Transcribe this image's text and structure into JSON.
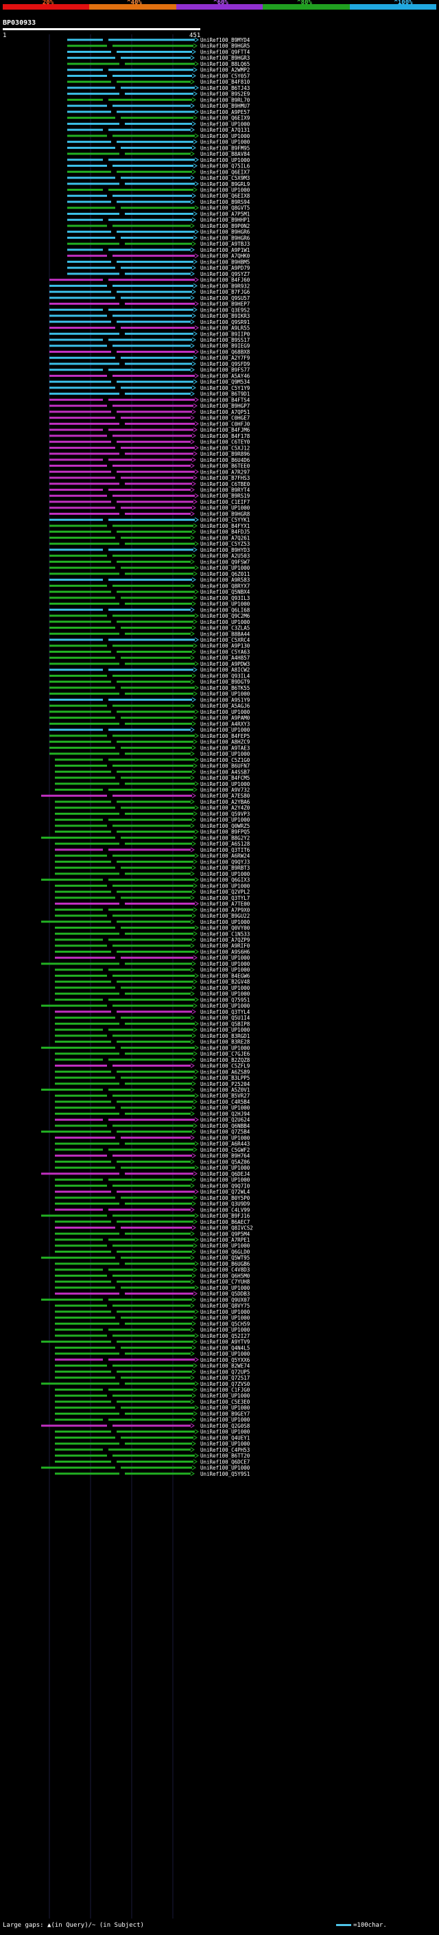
{
  "header": {
    "legend_labels": [
      "20%",
      "^40%",
      "^60%",
      "^80%",
      "^100%"
    ],
    "legend_colors": [
      "#e01010",
      "#e07010",
      "#9030d0",
      "#20a020",
      "#20a8e0"
    ],
    "query_id": "BP030933",
    "ruler_start": "1",
    "ruler_end": "451"
  },
  "hit_colors": {
    "cyan": "#3cc0e8",
    "green": "#22b022",
    "magenta": "#c030c0"
  },
  "footer": {
    "large_gaps": "Large gaps: ▲(in Query)/~ (in Subject)",
    "scale": "=100char."
  },
  "hits": [
    "UniRef100_B9MYD4",
    "UniRef100_B9HGR5",
    "UniRef100_Q9FTT4",
    "UniRef100_B9HGR3",
    "UniRef100_B8LQ65",
    "UniRef100_A2WMP2",
    "UniRef100_C5Y057",
    "UniRef100_B4F810",
    "UniRef100_B6TJ43",
    "UniRef100_B9S2E9",
    "UniRef100_B9RL70",
    "UniRef100_B9HMU7",
    "UniRef100_A9PE57",
    "UniRef100_Q6EIX9",
    "UniRef100_UP1000",
    "UniRef100_A7Q131",
    "UniRef100_UP1000",
    "UniRef100_UP1000",
    "UniRef100_B9FM95",
    "UniRef100_B8AV84",
    "UniRef100_UP1000",
    "UniRef100_Q75IL6",
    "UniRef100_Q6EIX7",
    "UniRef100_C5X9M3",
    "UniRef100_B9GRL9",
    "UniRef100_UP1000",
    "UniRef100_Q6EIX8",
    "UniRef100_B9RS94",
    "UniRef100_Q8GVT5",
    "UniRef100_A7P5M1",
    "UniRef100_B9HHP1",
    "UniRef100_B9P0N2",
    "UniRef100_B9HGR6",
    "UniRef100_B9HGR6",
    "UniRef100_A9TBJ3",
    "UniRef100_A9P1W1",
    "UniRef100_A7QHK0",
    "UniRef100_B9HBM5",
    "UniRef100_A9PD79",
    "UniRef100_Q9SYZ7",
    "UniRef100_B4FJ60",
    "UniRef100_B9R932",
    "UniRef100_B7FJG6",
    "UniRef100_Q9SU57",
    "UniRef100_B9HEP7",
    "UniRef100_Q3E9S2",
    "UniRef100_B9IKR3",
    "UniRef100_Q9SR91",
    "UniRef100_A9LR55",
    "UniRef100_B9IIP0",
    "UniRef100_B9SS17",
    "UniRef100_B9IEG9",
    "UniRef100_Q68BX8",
    "UniRef100_A2Y7F9",
    "UniRef100_Q9SFD9",
    "UniRef100_B9FS77",
    "UniRef100_A5AY46",
    "UniRef100_Q9M534",
    "UniRef100_C5Y1Y9",
    "UniRef100_B6T9D1",
    "UniRef100_B4FTS4",
    "UniRef100_B9HGP7",
    "UniRef100_A7QP51",
    "UniRef100_C0HGE7",
    "UniRef100_C0HFJ0",
    "UniRef100_B4FJM6",
    "UniRef100_B4F178",
    "UniRef100_C6TEY0",
    "UniRef100_C5XJ12",
    "UniRef100_B9R896",
    "UniRef100_B6U4D6",
    "UniRef100_B6TEE0",
    "UniRef100_A7R297",
    "UniRef100_B7FHS3",
    "UniRef100_C6TBE0",
    "UniRef100_B9RYT4",
    "UniRef100_B9RS19",
    "UniRef100_C1EIF7",
    "UniRef100_UP1000",
    "UniRef100_B9HGR8",
    "UniRef100_C5YYK1",
    "UniRef100_B4FYX1",
    "UniRef100_B4FDJ5",
    "UniRef100_A7Q261",
    "UniRef100_C5YZ53",
    "UniRef100_B9HYD3",
    "UniRef100_A2U503",
    "UniRef100_Q9FSW7",
    "UniRef100_UP1000",
    "UniRef100_Q6Z011",
    "UniRef100_A9R583",
    "UniRef100_Q8RYX7",
    "UniRef100_Q5NBX4",
    "UniRef100_Q93IL3",
    "UniRef100_UP1000",
    "UniRef100_Q6LI68",
    "UniRef100_Q9C2M6",
    "UniRef100_UP1000",
    "UniRef100_C3ZLA5",
    "UniRef100_B8BA44",
    "UniRef100_C5XRC4",
    "UniRef100_A9P130",
    "UniRef100_C5YA63",
    "UniRef100_A4H857",
    "UniRef100_A9PDW3",
    "UniRef100_A8ICW2",
    "UniRef100_Q93IL4",
    "UniRef100_B9DGT9",
    "UniRef100_B6TK55",
    "UniRef100_UP1000",
    "UniRef100_A9S1Y9",
    "UniRef100_A5AGJ6",
    "UniRef100_UP1000",
    "UniRef100_A9PAM0",
    "UniRef100_A4RXY3",
    "UniRef100_UP1000",
    "UniRef100_B4FEP5",
    "UniRef100_A8HZC9",
    "UniRef100_A9TAE3",
    "UniRef100_UP1000",
    "UniRef100_C5Z1G0",
    "UniRef100_B6UFN7",
    "UniRef100_A4SSB7",
    "UniRef100_B4FCM5",
    "UniRef100_UP1000",
    "UniRef100_A9V732",
    "UniRef100_A7ES80",
    "UniRef100_A2YBA6",
    "UniRef100_A2Y4Z0",
    "UniRef100_Q59VP3",
    "UniRef100_UP1000",
    "UniRef100_Q0WRZ5",
    "UniRef100_B9FPQ5",
    "UniRef100_B8G2Y2",
    "UniRef100_A6S128",
    "UniRef100_Q3TIT6",
    "UniRef100_A6RW24",
    "UniRef100_Q9QYJ3",
    "UniRef100_B9RBT3",
    "UniRef100_UP1000",
    "UniRef100_Q6GIX3",
    "UniRef100_UP1000",
    "UniRef100_Q2VPL2",
    "UniRef100_Q3TYL7",
    "UniRef100_A7TE00",
    "UniRef100_A7P9X0",
    "UniRef100_B9GU22",
    "UniRef100_UP1000",
    "UniRef100_Q0VY00",
    "UniRef100_C1N533",
    "UniRef100_A7QZP9",
    "UniRef100_A9RIF0",
    "UniRef100_A9S6H6",
    "UniRef100_UP1000",
    "UniRef100_UP1000",
    "UniRef100_UP1000",
    "UniRef100_B4EGW6",
    "UniRef100_B2GV48",
    "UniRef100_UP1000",
    "UniRef100_UP1000",
    "UniRef100_Q75951",
    "UniRef100_UP1000",
    "UniRef100_Q3TYL4",
    "UniRef100_Q5U1I4",
    "UniRef100_Q5BIP8",
    "UniRef100_UP1000",
    "UniRef100_B3RGD1",
    "UniRef100_B3RE28",
    "UniRef100_UP1000",
    "UniRef100_C7GJE6",
    "UniRef100_B2ZQZ8",
    "UniRef100_C5ZFL9",
    "UniRef100_A6ZS89",
    "UniRef100_B3LPP5",
    "UniRef100_P25204",
    "UniRef100_A5Z0V1",
    "UniRef100_B5VR27",
    "UniRef100_C4R5B4",
    "UniRef100_UP1000",
    "UniRef100_Q2HJ94",
    "UniRef100_Q2U624",
    "UniRef100_Q6NBB4",
    "UniRef100_Q7Z5B4",
    "UniRef100_UP1000",
    "UniRef100_A6R443",
    "UniRef100_C5GWF2",
    "UniRef100_B9H764",
    "UniRef100_Q5AZ06",
    "UniRef100_UP1000",
    "UniRef100_Q6DEJ4",
    "UniRef100_UP1000",
    "UniRef100_Q9Q7I0",
    "UniRef100_Q72WL4",
    "UniRef100_B0Y5P0",
    "UniRef100_Q3U9D9",
    "UniRef100_C4LV99",
    "UniRef100_B9FJ16",
    "UniRef100_B6AEC7",
    "UniRef100_Q8IVCS2",
    "UniRef100_Q9P5M4",
    "UniRef100_A7RPE1",
    "UniRef100_UP1000",
    "UniRef100_Q6GLD0",
    "UniRef100_Q5WT95",
    "UniRef100_B6UGB6",
    "UniRef100_C4V8D3",
    "UniRef100_Q6H5M0",
    "UniRef100_C7YUH8",
    "UniRef100_UP1000",
    "UniRef100_Q5DDB3",
    "UniRef100_Q9UX07",
    "UniRef100_Q8VY75",
    "UniRef100_UP1000",
    "UniRef100_UP1000",
    "UniRef100_Q5CH59",
    "UniRef100_UP1000",
    "UniRef100_Q52I27",
    "UniRef100_A9YTV9",
    "UniRef100_Q4N4L5",
    "UniRef100_UP1000",
    "UniRef100_Q5YXX6",
    "UniRef100_B2WE74",
    "UniRef100_Q72UP5",
    "UniRef100_Q72S17",
    "UniRef100_Q7ZVS0",
    "UniRef100_C1FJG0",
    "UniRef100_UP1000",
    "UniRef100_C5E3E0",
    "UniRef100_UP1000",
    "UniRef100_B9GEY7",
    "UniRef100_UP1000",
    "UniRef100_Q2G0S8",
    "UniRef100_UP1000",
    "UniRef100_Q4UEY1",
    "UniRef100_UP1000",
    "UniRef100_C4PH53",
    "UniRef100_B6TT20",
    "UniRef100_Q6DCE7",
    "UniRef100_UP1000",
    "UniRef100_Q5Y9S1"
  ]
}
